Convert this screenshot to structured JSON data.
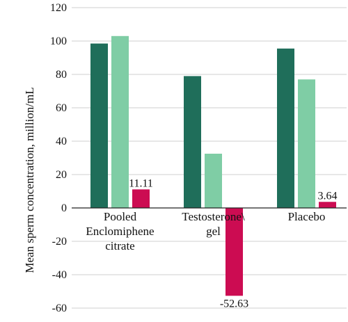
{
  "chart_data": {
    "type": "bar",
    "title": "",
    "xlabel": "",
    "ylabel": "Mean sperm concentration, million/mL",
    "ylim": [
      -60,
      120
    ],
    "yticks": [
      120,
      100,
      80,
      60,
      40,
      20,
      0,
      -20,
      -40,
      -60
    ],
    "grid": true,
    "categories": [
      [
        "Pooled",
        "Enclomiphene",
        "citrate"
      ],
      [
        "Testosterone\\",
        "gel"
      ],
      [
        "Placebo"
      ]
    ],
    "series": [
      {
        "color": "#1f6e5a",
        "values": [
          98.5,
          79,
          95.5
        ],
        "labels": [
          "",
          "",
          ""
        ]
      },
      {
        "color": "#7fcda5",
        "values": [
          103,
          32.5,
          77
        ],
        "labels": [
          "",
          "",
          ""
        ]
      },
      {
        "color": "#cc0c52",
        "values": [
          11.11,
          -52.63,
          3.64
        ],
        "labels": [
          "11.11",
          "-52.63",
          "3.64"
        ]
      }
    ]
  }
}
